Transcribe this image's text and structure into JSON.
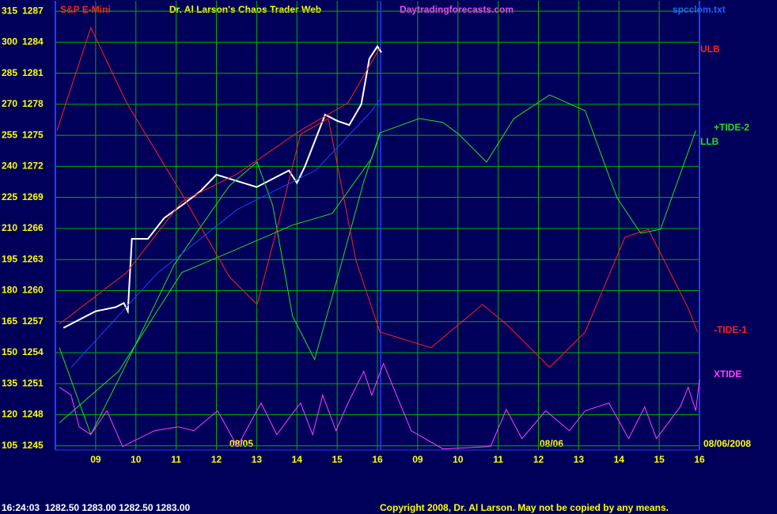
{
  "chart_data": {
    "type": "line",
    "title": "Dr. Al Larson's Chaos Trader Web",
    "subtitle": "S&P E-Mini",
    "site": "Daytradingforecasts.com",
    "file": "spcclom.txt",
    "status": "16:24:03  1282.50 1283.00 1282.50 1283.00",
    "copyright": "Copyright 2008, Dr. Al Larson. May not be copied by any means.",
    "annotations": [
      "08/05",
      "08/06",
      "08/06/2008"
    ],
    "xlim": [
      0,
      16
    ],
    "xticks": [
      {
        "value": 1,
        "label": "09"
      },
      {
        "value": 2,
        "label": "10"
      },
      {
        "value": 3,
        "label": "11"
      },
      {
        "value": 4,
        "label": "12"
      },
      {
        "value": 5,
        "label": "13"
      },
      {
        "value": 6,
        "label": "14"
      },
      {
        "value": 7,
        "label": "15"
      },
      {
        "value": 8,
        "label": "16"
      },
      {
        "value": 9,
        "label": "09"
      },
      {
        "value": 10,
        "label": "10"
      },
      {
        "value": 11,
        "label": "11"
      },
      {
        "value": 12,
        "label": "12"
      },
      {
        "value": 13,
        "label": "13"
      },
      {
        "value": 14,
        "label": "14"
      },
      {
        "value": 15,
        "label": "15"
      },
      {
        "value": 16,
        "label": "16"
      }
    ],
    "ylim": [
      103,
      320
    ],
    "yticks": [
      105,
      120,
      135,
      150,
      165,
      180,
      195,
      210,
      225,
      240,
      255,
      270,
      285,
      300,
      315
    ],
    "y2lim": [
      1244.6,
      1288
    ],
    "y2ticks": [
      1245,
      1248,
      1251,
      1254,
      1257,
      1260,
      1263,
      1266,
      1269,
      1272,
      1275,
      1278,
      1281,
      1284,
      1287
    ],
    "grid": true,
    "series": [
      {
        "color": "#ffffff",
        "x": [
          0.2,
          0.5,
          1,
          1.5,
          1.7,
          1.8,
          1.9,
          2.3,
          2.7,
          3.2,
          3.6,
          4,
          4.5,
          5,
          5.5,
          5.8,
          6,
          6.2,
          6.5,
          6.7,
          7,
          7.3,
          7.6,
          7.8,
          8,
          8.1
        ],
        "values": [
          162,
          165,
          170,
          172,
          174,
          170,
          205,
          205,
          215,
          222,
          228,
          236,
          233,
          230,
          235,
          238,
          232,
          240,
          255,
          265,
          262,
          260,
          270,
          292,
          298,
          295
        ]
      },
      {
        "name": "ULB",
        "color": "#ff2020",
        "x": [
          0.1,
          1.77,
          3.14,
          4.52,
          6.09,
          7.27,
          8.06
        ],
        "values": [
          163.9,
          188.7,
          223,
          236.4,
          257.4,
          270.7,
          297.4
        ]
      },
      {
        "name": "+TIDE-2",
        "color": "#20e020",
        "x": [
          0.1,
          0.88,
          1.67,
          2.95,
          4.32,
          5.01,
          5.4,
          5.89,
          6.44,
          7.07,
          7.66,
          8.06,
          9.04,
          9.63,
          10.02,
          10.71,
          11.39,
          12.28,
          13.16,
          13.95,
          14.54,
          15.03,
          15.91
        ],
        "values": [
          152.4,
          110.4,
          141,
          192.5,
          230.6,
          242.1,
          221.1,
          167.7,
          146.7,
          190.6,
          232.6,
          256.2,
          263.1,
          261.2,
          255.5,
          242.1,
          263.1,
          274.5,
          266.9,
          224.9,
          207.7,
          209.6,
          257.4
        ]
      },
      {
        "name": "LLB",
        "color": "#20e020",
        "x": [
          0.1,
          1.57,
          3.14,
          4.52,
          5.89,
          6.88,
          7.86,
          8.06
        ],
        "values": [
          116.1,
          141,
          188.7,
          200.1,
          211.6,
          217.3,
          244,
          255.5
        ]
      },
      {
        "name": "-TIDE-1",
        "color": "#ff2020",
        "x": [
          0.04,
          0.88,
          1.77,
          3.14,
          4.32,
          5.01,
          5.5,
          6.09,
          6.78,
          7.47,
          8.06,
          9.33,
          10.61,
          11.2,
          12.28,
          13.16,
          14.15,
          14.73,
          15.72,
          15.95
        ],
        "values": [
          257.4,
          307,
          270.7,
          226.8,
          186.7,
          173.3,
          209.6,
          255.5,
          263.1,
          194.4,
          160,
          152.4,
          173.3,
          163.8,
          142.9,
          160,
          205.8,
          209.6,
          171.5,
          160
        ]
      },
      {
        "name": "XTIDE",
        "color": "#ff40ff",
        "x": [
          0.1,
          0.39,
          0.59,
          0.88,
          1.28,
          1.67,
          2.46,
          3.05,
          3.44,
          4.03,
          4.52,
          5.11,
          5.5,
          6.09,
          6.39,
          6.64,
          6.97,
          7.27,
          7.66,
          7.86,
          8.15,
          8.84,
          9.63,
          10.81,
          11.2,
          11.59,
          12.18,
          12.77,
          13.16,
          13.75,
          14.24,
          14.64,
          14.93,
          15.52,
          15.72,
          15.91,
          16
        ],
        "values": [
          133.3,
          129.5,
          114.2,
          110.4,
          121.9,
          104.7,
          112.3,
          114.2,
          112.3,
          121.9,
          104.7,
          125.7,
          110.4,
          125.7,
          110.4,
          129.5,
          112.3,
          125.7,
          141,
          129.5,
          144.8,
          112.3,
          103.5,
          104.7,
          122.6,
          108.5,
          121.9,
          112.3,
          121.9,
          125.7,
          108.5,
          123.8,
          108.5,
          123.8,
          133.3,
          121.9,
          137
        ]
      },
      {
        "color": "#2040ff",
        "x": [
          0.39,
          2.55,
          4.52,
          6.48,
          7.86,
          8.06
        ],
        "values": [
          142.9,
          188.7,
          219.2,
          238.3,
          266.9,
          272.6
        ]
      }
    ]
  }
}
